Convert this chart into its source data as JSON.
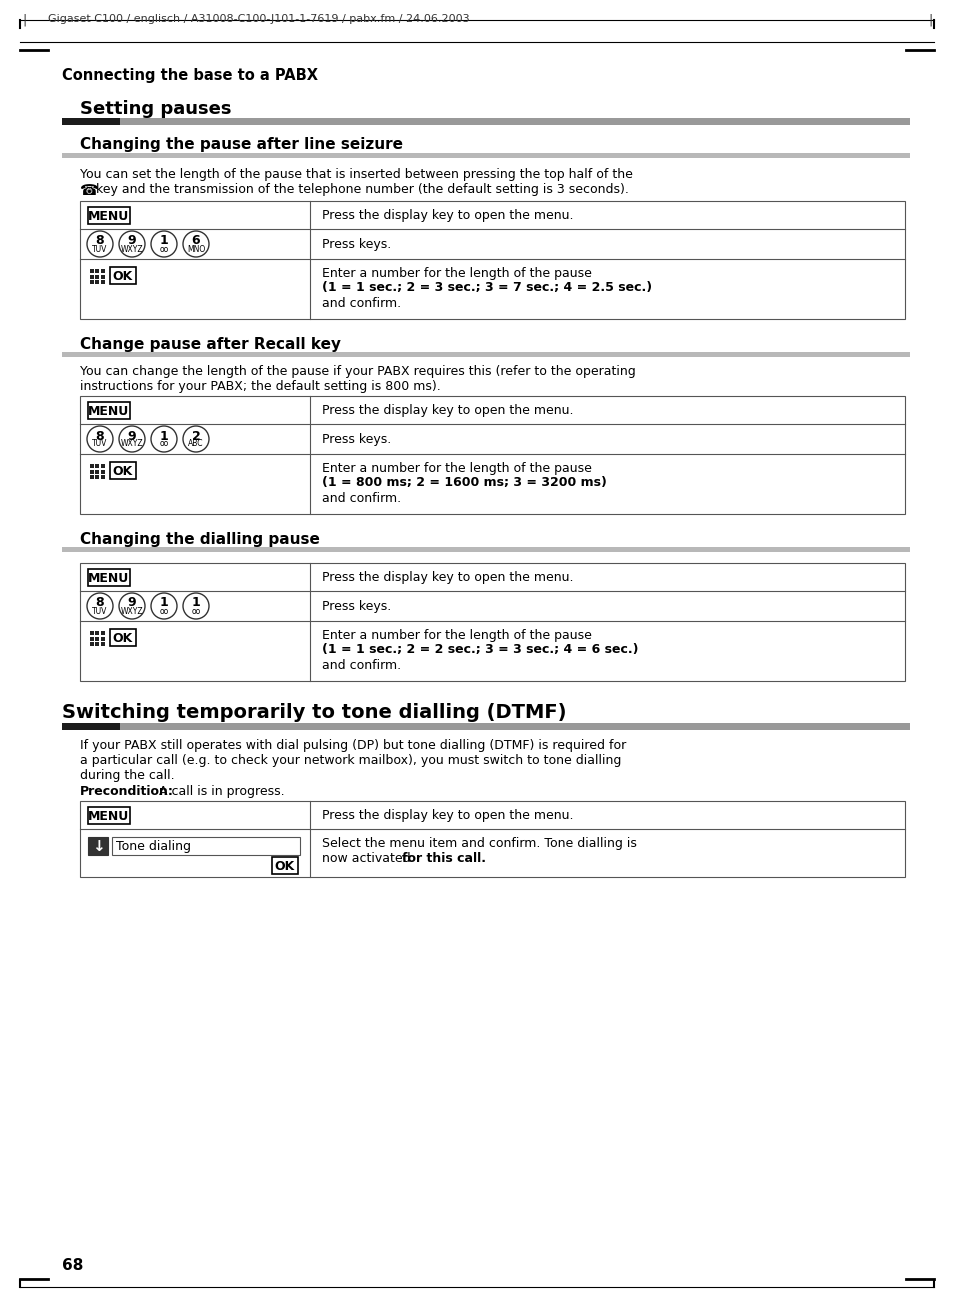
{
  "page_header": "Gigaset C100 / englisch / A31008-C100-J101-1-7619 / pabx.fm / 24.06.2003",
  "section_title": "Connecting the base to a PABX",
  "subsection1_title": "Setting pauses",
  "sub1_title": "Changing the pause after line seizure",
  "sub1_body1": "You can set the length of the pause that is inserted between pressing the top half of the",
  "sub1_body2": "key and the transmission of the telephone number (the default setting is 3 seconds).",
  "sub2_title": "Change pause after Recall key",
  "sub2_body1": "You can change the length of the pause if your PABX requires this (refer to the operating",
  "sub2_body2": "instructions for your PABX; the default setting is 800 ms).",
  "sub3_title": "Changing the dialling pause",
  "subsection2_title": "Switching temporarily to tone dialling (DTMF)",
  "sub4_body1": "If your PABX still operates with dial pulsing (DP) but tone dialling (DTMF) is required for",
  "sub4_body2": "a particular call (e.g. to check your network mailbox), you must switch to tone dialling",
  "sub4_body3": "during the call.",
  "sub4_precond_bold": "Precondition:",
  "sub4_precond_normal": " A call is in progress.",
  "table1_keys": [
    [
      "8",
      "TUV"
    ],
    [
      "9",
      "WXYZ"
    ],
    [
      "1",
      "∞∞"
    ],
    [
      "6",
      "MNO"
    ]
  ],
  "table1_right3": "Enter a number for the length of the pause",
  "table1_right3b": "(1 = 1 sec.; 2 = 3 sec.; 3 = 7 sec.; 4 = 2.5 sec.)",
  "table2_keys": [
    [
      "8",
      "TUV"
    ],
    [
      "9",
      "WXYZ"
    ],
    [
      "1",
      "∞∞"
    ],
    [
      "2",
      "ABC"
    ]
  ],
  "table2_right3": "Enter a number for the length of the pause",
  "table2_right3b": "(1 = 800 ms; 2 = 1600 ms; 3 = 3200 ms)",
  "table3_keys": [
    [
      "8",
      "TUV"
    ],
    [
      "9",
      "WXYZ"
    ],
    [
      "1",
      "∞∞"
    ],
    [
      "1",
      "∞∞"
    ]
  ],
  "table3_right3": "Enter a number for the length of the pause",
  "table3_right3b": "(1 = 1 sec.; 2 = 2 sec.; 3 = 3 sec.; 4 = 6 sec.)",
  "page_number": "68",
  "bg_color": "#ffffff",
  "black_bar": "#1c1c1c",
  "gray_bar": "#999999",
  "gray_bar2": "#b8b8b8",
  "table_line": "#555555"
}
